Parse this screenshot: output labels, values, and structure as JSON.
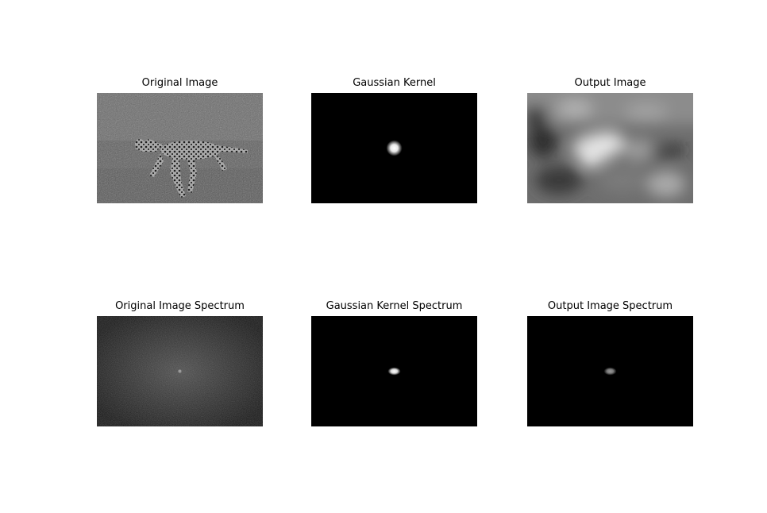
{
  "panels": {
    "original": {
      "title": "Original Image"
    },
    "kernel": {
      "title": "Gaussian Kernel"
    },
    "output": {
      "title": "Output Image"
    },
    "original_spectrum": {
      "title": "Original Image Spectrum"
    },
    "kernel_spectrum": {
      "title": "Gaussian Kernel Spectrum"
    },
    "output_spectrum": {
      "title": "Output Image Spectrum"
    }
  }
}
